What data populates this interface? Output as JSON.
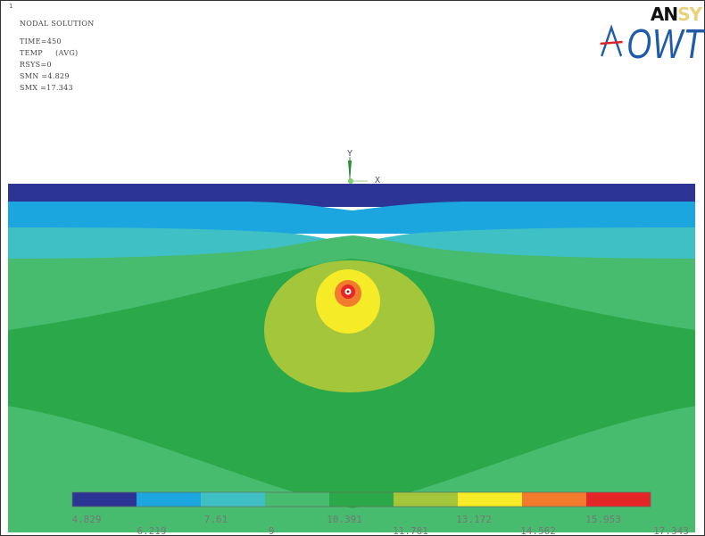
{
  "frame_number": "1",
  "info": {
    "title": "NODAL SOLUTION",
    "lines": [
      "TIME=450",
      "TEMP     (AVG)",
      "RSYS=0",
      "SMN =4.829",
      "SMX =17.343"
    ]
  },
  "logo": {
    "brand_dark": "AN",
    "brand_light": "SY",
    "mark": "OWT"
  },
  "axis": {
    "y_label": "Y",
    "x_label": "X"
  },
  "colors": {
    "c1": "#2c3593",
    "c2": "#1ba6e0",
    "c3": "#3ec0c4",
    "c4": "#47bb6e",
    "c5": "#2ba84a",
    "c6": "#a3c63a",
    "c7": "#f6eb27",
    "c8": "#f27b2e",
    "c9": "#e52629"
  },
  "legend": {
    "values_top": [
      "4.829",
      "7.61",
      "10.391",
      "13.172",
      "15.953"
    ],
    "values_bottom": [
      "6.219",
      "9",
      "11.781",
      "14.562",
      "17.343"
    ]
  }
}
